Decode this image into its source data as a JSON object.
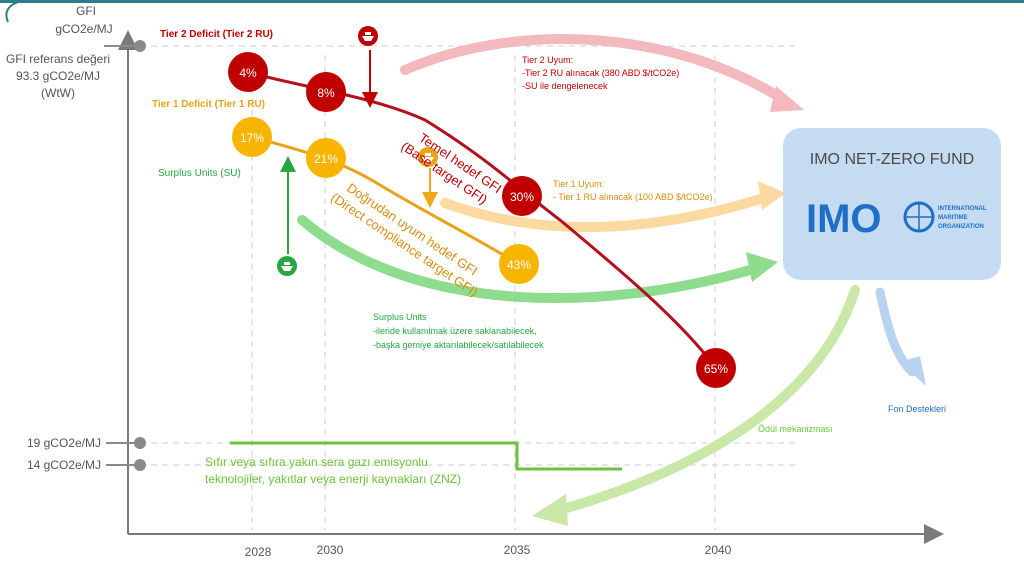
{
  "axis": {
    "y_unit_line1": "GFI",
    "y_unit_line2": "gCO2e/MJ",
    "ref_label_line1": "GFI referans değeri",
    "ref_label_line2": "93.3 gCO2e/MJ",
    "ref_label_line3": "(WtW)",
    "level_19": "19 gCO2e/MJ",
    "level_14": "14 gCO2e/MJ",
    "years": [
      "2028",
      "2030",
      "2035",
      "2040"
    ]
  },
  "labels": {
    "tier2_deficit": "Tier 2 Deficit (Tier 2 RU)",
    "tier1_deficit": "Tier 1 Deficit (Tier 1 RU)",
    "surplus_units": "Surplus Units  (SU)",
    "base_target_line1": "Temel hedef GFI",
    "base_target_line2": "(Base target GFI)",
    "direct_target_line1": "Doğrudan uyum hedef GFI",
    "direct_target_line2": "(Direct compliance target GFI)",
    "tier2_compliance": [
      "Tier 2 Uyum:",
      "-Tier 2 RU alınacak (380 ABD $/tCO2e)",
      "-SU ile dengelenecek"
    ],
    "tier1_compliance": [
      "Tier 1 Uyum:",
      "- Tier 1 RU alınacak (100 ABD $/tCO2e)"
    ],
    "surplus_info": [
      "Surplus Units",
      "-ileride kullanılmak üzere saklanabilecek,",
      "-başka gemiye aktarılabilecek/satılabilecek"
    ],
    "znz_line1": "Sıfır veya sıfıra yakın sera gazı emisyonlu",
    "znz_line2": "teknolojiler, yakıtlar veya enerji kaynakları (ZNZ)",
    "reward_mechanism": "Ödül mekanizması",
    "fund_support": "Fon Destekleri"
  },
  "fund": {
    "title": "IMO NET-ZERO FUND",
    "logo_text": "IMO",
    "logo_sub": [
      "INTERNATIONAL",
      "MARITIME",
      "ORGANIZATION"
    ]
  },
  "base_points": [
    {
      "year": "2028",
      "pct": "4%"
    },
    {
      "year": "2030",
      "pct": "8%"
    },
    {
      "year": "2035",
      "pct": "30%"
    },
    {
      "year": "2040",
      "pct": "65%"
    }
  ],
  "direct_points": [
    {
      "year": "2028",
      "pct": "17%"
    },
    {
      "year": "2030",
      "pct": "21%"
    },
    {
      "year": "2035",
      "pct": "43%"
    }
  ],
  "colors": {
    "tier2": "#c00000",
    "tier1": "#f0a818",
    "surplus": "#2aa640",
    "znz": "#6dc43b",
    "fund_box": "#c5dbf2",
    "fund_text": "#1f6fc6",
    "axis": "#7a7a7a"
  }
}
